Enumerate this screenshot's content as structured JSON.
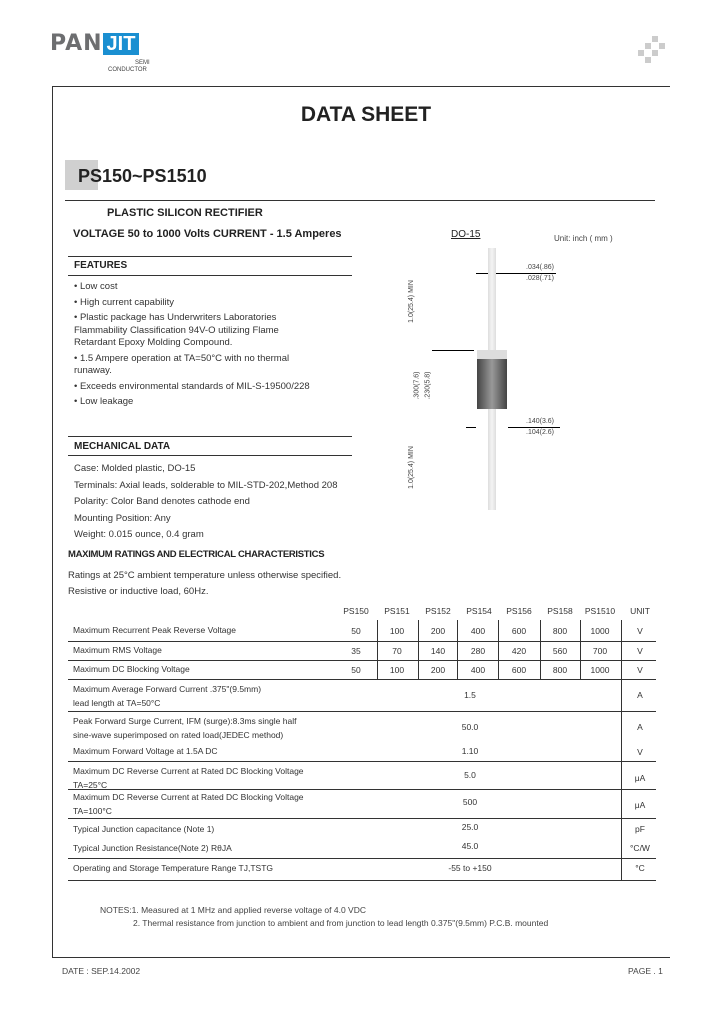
{
  "logo": {
    "brand_left": "PAN",
    "brand_right": "JIT",
    "sub1": "SEMI",
    "sub2": "CONDUCTOR"
  },
  "title": "DATA  SHEET",
  "part": "PS150~PS1510",
  "subtitle": "PLASTIC SILICON RECTIFIER",
  "rating": "VOLTAGE 50 to 1000 Volts  CURRENT - 1.5 Amperes",
  "package": {
    "name": "DO-15",
    "unit": "Unit: inch ( mm )",
    "dims": {
      "lead_dia_max": ".034(.86)",
      "lead_dia_min": ".028(.71)",
      "lead_len_top": "1.0(25.4) MIN",
      "body_len_max": ".300(7.6)",
      "body_len_min": ".230(5.8)",
      "body_dia_max": ".140(3.6)",
      "body_dia_min": ".104(2.6)",
      "lead_len_bottom": "1.0(25.4) MIN"
    }
  },
  "features": {
    "heading": "FEATURES",
    "items": [
      "Low cost",
      "High current capability",
      "Plastic package has Underwriters Laboratories Flammability Classification 94V-O utilizing Flame Retardant Epoxy Molding Compound.",
      "1.5 Ampere operation at TA=50°C with no thermal runaway.",
      "Exceeds environmental standards of MIL-S-19500/228",
      "Low leakage"
    ]
  },
  "mechanical": {
    "heading": "MECHANICAL DATA",
    "items": [
      "Case: Molded plastic, DO-15",
      "Terminals: Axial leads, solderable to MIL-STD-202,Method 208",
      "Polarity: Color Band denotes cathode end",
      "Mounting Position: Any",
      "Weight: 0.015 ounce, 0.4 gram"
    ]
  },
  "ratings": {
    "heading": "MAXIMUM RATINGS AND ELECTRICAL CHARACTERISTICS",
    "note1": "Ratings at 25°C ambient temperature unless otherwise specified.",
    "note2": "Resistive or inductive load, 60Hz.",
    "columns": [
      "PS150",
      "PS151",
      "PS152",
      "PS154",
      "PS156",
      "PS158",
      "PS1510",
      "UNIT"
    ],
    "per_part_rows": [
      {
        "label": "Maximum Recurrent Peak Reverse Voltage",
        "values": [
          "50",
          "100",
          "200",
          "400",
          "600",
          "800",
          "1000"
        ],
        "unit": "V"
      },
      {
        "label": "Maximum RMS Voltage",
        "values": [
          "35",
          "70",
          "140",
          "280",
          "420",
          "560",
          "700"
        ],
        "unit": "V"
      },
      {
        "label": "Maximum DC Blocking Voltage",
        "values": [
          "50",
          "100",
          "200",
          "400",
          "600",
          "800",
          "1000"
        ],
        "unit": "V"
      }
    ],
    "common_rows": [
      {
        "label": "Maximum Average Forward  Current .375\"(9.5mm)",
        "label2": "lead  length at TA=50°C",
        "value": "1.5",
        "unit": "A"
      },
      {
        "label": "Peak Forward Surge Current, IFM (surge):8.3ms single half",
        "label2": "sine-wave superimposed on rated load(JEDEC method)",
        "value": "50.0",
        "unit": "A"
      },
      {
        "label": "Maximum Forward Voltage at 1.5A DC",
        "label2": "",
        "value": "1.10",
        "unit": "V"
      },
      {
        "label": "Maximum DC Reverse Current at Rated DC Blocking Voltage",
        "label2": "TA=25°C",
        "value": "5.0",
        "unit": "μA"
      },
      {
        "label": "Maximum DC Reverse Current at Rated DC Blocking Voltage",
        "label2": "TA=100°C",
        "value": "500",
        "unit": "μA"
      },
      {
        "label": "Typical Junction capacitance (Note 1)",
        "label2": "",
        "value": "25.0",
        "unit": "pF"
      },
      {
        "label": "Typical Junction Resistance(Note 2) RθJA",
        "label2": "",
        "value": "45.0",
        "unit": "°C/W"
      },
      {
        "label": "Operating and Storage Temperature Range TJ,TSTG",
        "label2": "",
        "value": "-55 to +150",
        "unit": "°C"
      }
    ]
  },
  "notes": [
    "NOTES:1. Measured at 1 MHz and applied reverse voltage of 4.0 VDC",
    "2. Thermal resistance from junction to ambient and from junction to lead length 0.375\"(9.5mm) P.C.B. mounted"
  ],
  "footer": {
    "date": "DATE : SEP.14.2002",
    "page": "PAGE . 1"
  }
}
